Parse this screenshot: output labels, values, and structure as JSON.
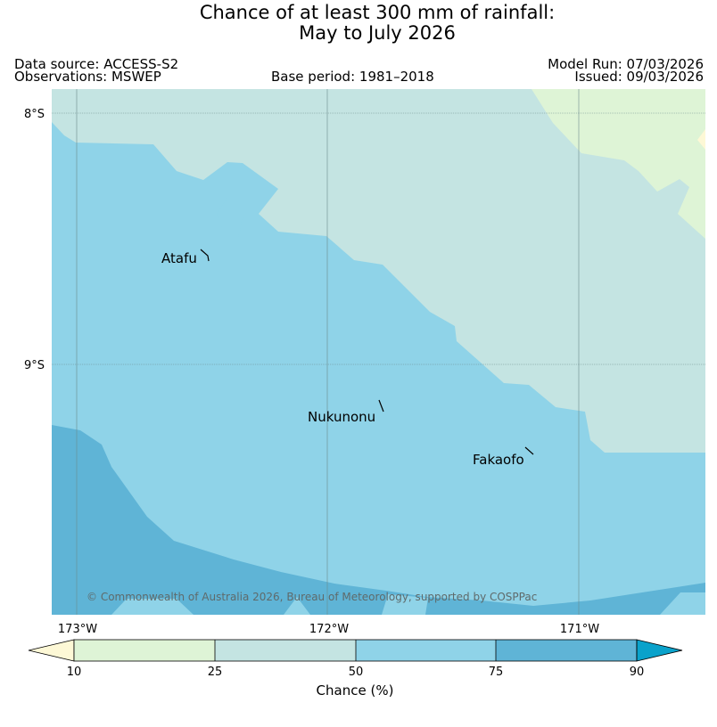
{
  "title": {
    "line1": "Chance of at least 300 mm of rainfall:",
    "line2": "May to July 2026"
  },
  "meta": {
    "data_source": "Data source: ACCESS-S2",
    "observations": "Observations: MSWEP",
    "base_period": "Base period: 1981–2018",
    "model_run": "Model Run: 07/03/2026",
    "issued": "Issued: 09/03/2026"
  },
  "map": {
    "lat_labels": [
      "8°S",
      "9°S"
    ],
    "lon_labels": [
      "173°W",
      "172°W",
      "171°W"
    ],
    "places": [
      "Atafu",
      "Nukunonu",
      "Fakaofo"
    ],
    "copyright": "© Commonwealth of Australia 2026, Bureau of Meteorology, supported by COSPPac"
  },
  "colorbar": {
    "ticks": [
      "10",
      "25",
      "50",
      "75",
      "90"
    ],
    "label": "Chance (%)",
    "classes": [
      {
        "range": "<10",
        "color": "#fdf8d6"
      },
      {
        "range": "10–25",
        "color": "#def4d6"
      },
      {
        "range": "25–50",
        "color": "#c4e4e2"
      },
      {
        "range": "50–75",
        "color": "#8fd3e8"
      },
      {
        "range": "75–90",
        "color": "#5fb4d6"
      },
      {
        "range": ">90",
        "color": "#0aa2cb"
      }
    ]
  }
}
